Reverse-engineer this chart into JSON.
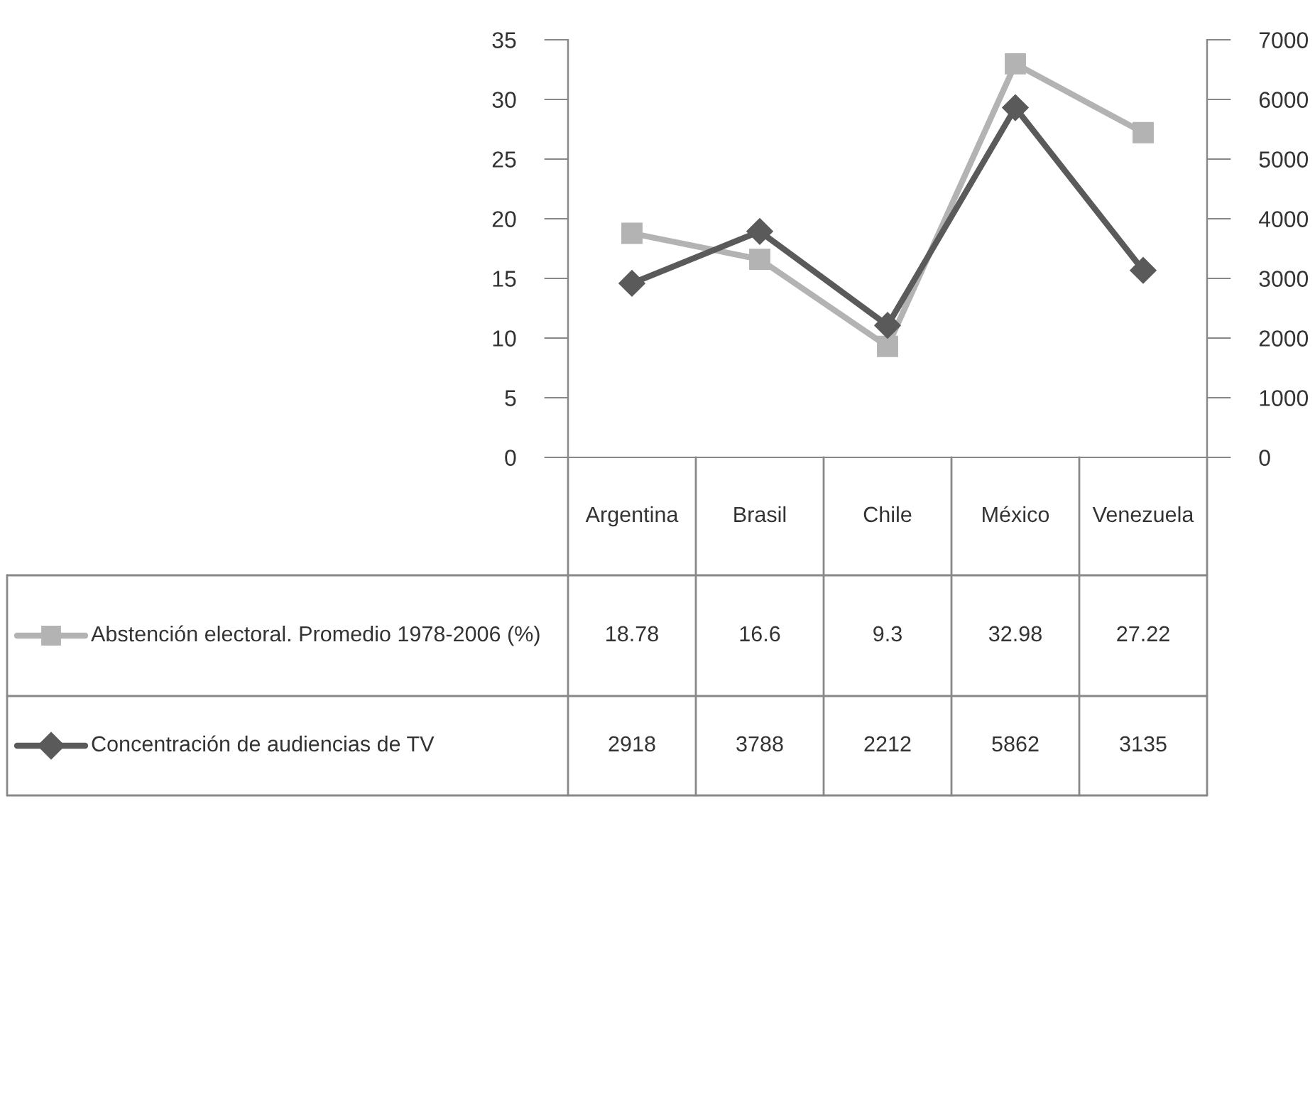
{
  "chart_data": {
    "type": "line",
    "categories": [
      "Argentina",
      "Brasil",
      "Chile",
      "México",
      "Venezuela"
    ],
    "series": [
      {
        "name": "Abstención electoral. Promedio 1978-2006 (%)",
        "color": "#b3b3b3",
        "marker": "square",
        "values": [
          18.78,
          16.6,
          9.3,
          32.98,
          27.22
        ]
      },
      {
        "name": "Concentración de audiencias de TV",
        "color": "#5a5a5a",
        "marker": "diamond",
        "axis": "y2",
        "values": [
          2918,
          3788,
          2212,
          5862,
          3135
        ]
      }
    ],
    "ylim": [
      0,
      35
    ],
    "yticks": [
      0,
      5,
      10,
      15,
      20,
      25,
      30,
      35
    ],
    "y2lim": [
      0,
      7000
    ],
    "y2ticks": [
      0,
      1000,
      2000,
      3000,
      4000,
      5000,
      6000,
      7000
    ],
    "data_labels": true,
    "legend": "bottom",
    "grid": false
  }
}
